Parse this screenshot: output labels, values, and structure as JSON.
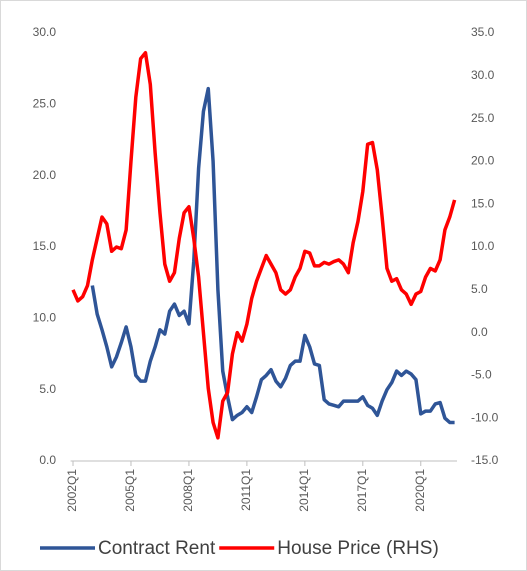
{
  "chart_data": {
    "type": "line",
    "categories": [
      "2002Q1",
      null,
      null,
      null,
      null,
      null,
      null,
      null,
      null,
      null,
      null,
      null,
      "2005Q1",
      null,
      null,
      null,
      null,
      null,
      null,
      null,
      null,
      null,
      null,
      null,
      "2008Q1",
      null,
      null,
      null,
      null,
      null,
      null,
      null,
      null,
      null,
      null,
      null,
      "2011Q1",
      null,
      null,
      null,
      null,
      null,
      null,
      null,
      null,
      null,
      null,
      null,
      "2014Q1",
      null,
      null,
      null,
      null,
      null,
      null,
      null,
      null,
      null,
      null,
      null,
      "2017Q1",
      null,
      null,
      null,
      null,
      null,
      null,
      null,
      null,
      null,
      null,
      null,
      "2020Q1",
      null,
      null,
      null,
      null,
      null,
      null,
      null
    ],
    "series": [
      {
        "name": "Contract Rent",
        "color": "#2f5597",
        "axis": "y",
        "values": [
          null,
          null,
          null,
          null,
          12.3,
          10.3,
          9.2,
          8.0,
          6.6,
          7.3,
          8.3,
          9.4,
          8.0,
          6.0,
          5.6,
          5.6,
          7.0,
          8.0,
          9.2,
          8.9,
          10.5,
          11.0,
          10.2,
          10.5,
          9.6,
          14.0,
          20.5,
          24.5,
          26.1,
          21.0,
          12.0,
          6.3,
          4.5,
          2.9,
          3.2,
          3.4,
          3.8,
          3.4,
          4.5,
          5.7,
          6.0,
          6.4,
          5.6,
          5.2,
          5.8,
          6.7,
          7.0,
          7.0,
          8.8,
          8.0,
          6.8,
          6.7,
          4.3,
          4.0,
          3.9,
          3.8,
          4.2,
          4.2,
          4.2,
          4.2,
          4.5,
          3.9,
          3.7,
          3.2,
          4.2,
          5.0,
          5.5,
          6.3,
          6.0,
          6.3,
          6.1,
          5.7,
          3.3,
          3.5,
          3.5,
          4.0,
          4.1,
          3.0,
          2.7,
          2.7
        ]
      },
      {
        "name": "House Price (RHS)",
        "color": "#ff0000",
        "axis": "y2",
        "values": [
          5.0,
          3.7,
          4.2,
          5.5,
          8.5,
          11.0,
          13.5,
          12.7,
          9.5,
          10.0,
          9.8,
          12.0,
          20.0,
          27.5,
          32.0,
          32.7,
          29.0,
          21.0,
          14.0,
          8.0,
          6.0,
          7.0,
          11.0,
          14.0,
          14.7,
          11.0,
          6.5,
          0.0,
          -6.5,
          -10.5,
          -12.3,
          -8.0,
          -7.0,
          -2.5,
          0.0,
          -1.0,
          1.0,
          4.0,
          6.0,
          7.5,
          9.0,
          8.0,
          7.0,
          5.0,
          4.5,
          5.0,
          6.5,
          7.5,
          9.5,
          9.3,
          7.8,
          7.8,
          8.2,
          8.0,
          8.3,
          8.5,
          8.0,
          7.0,
          10.5,
          13.0,
          16.5,
          22.0,
          22.2,
          19.0,
          13.5,
          7.5,
          6.0,
          6.3,
          5.0,
          4.5,
          3.3,
          4.5,
          4.8,
          6.5,
          7.5,
          7.2,
          8.5,
          12.0,
          13.5,
          15.5
        ]
      }
    ],
    "ylim": [
      0,
      30
    ],
    "yticks": [
      {
        "value": 0,
        "label": "0.0"
      },
      {
        "value": 5,
        "label": "5.0"
      },
      {
        "value": 10,
        "label": "10.0"
      },
      {
        "value": 15,
        "label": "15.0"
      },
      {
        "value": 20,
        "label": "20.0"
      },
      {
        "value": 25,
        "label": "25.0"
      },
      {
        "value": 30,
        "label": "30.0"
      }
    ],
    "y2lim": [
      -15,
      35
    ],
    "y2ticks": [
      {
        "value": -15,
        "label": "-15.0"
      },
      {
        "value": -10,
        "label": "-10.0"
      },
      {
        "value": -5,
        "label": "-5.0"
      },
      {
        "value": 0,
        "label": "0.0"
      },
      {
        "value": 5,
        "label": "5.0"
      },
      {
        "value": 10,
        "label": "10.0"
      },
      {
        "value": 15,
        "label": "15.0"
      },
      {
        "value": 20,
        "label": "20.0"
      },
      {
        "value": 25,
        "label": "25.0"
      },
      {
        "value": 30,
        "label": "30.0"
      },
      {
        "value": 35,
        "label": "35.0"
      }
    ],
    "legend": "bottom"
  }
}
